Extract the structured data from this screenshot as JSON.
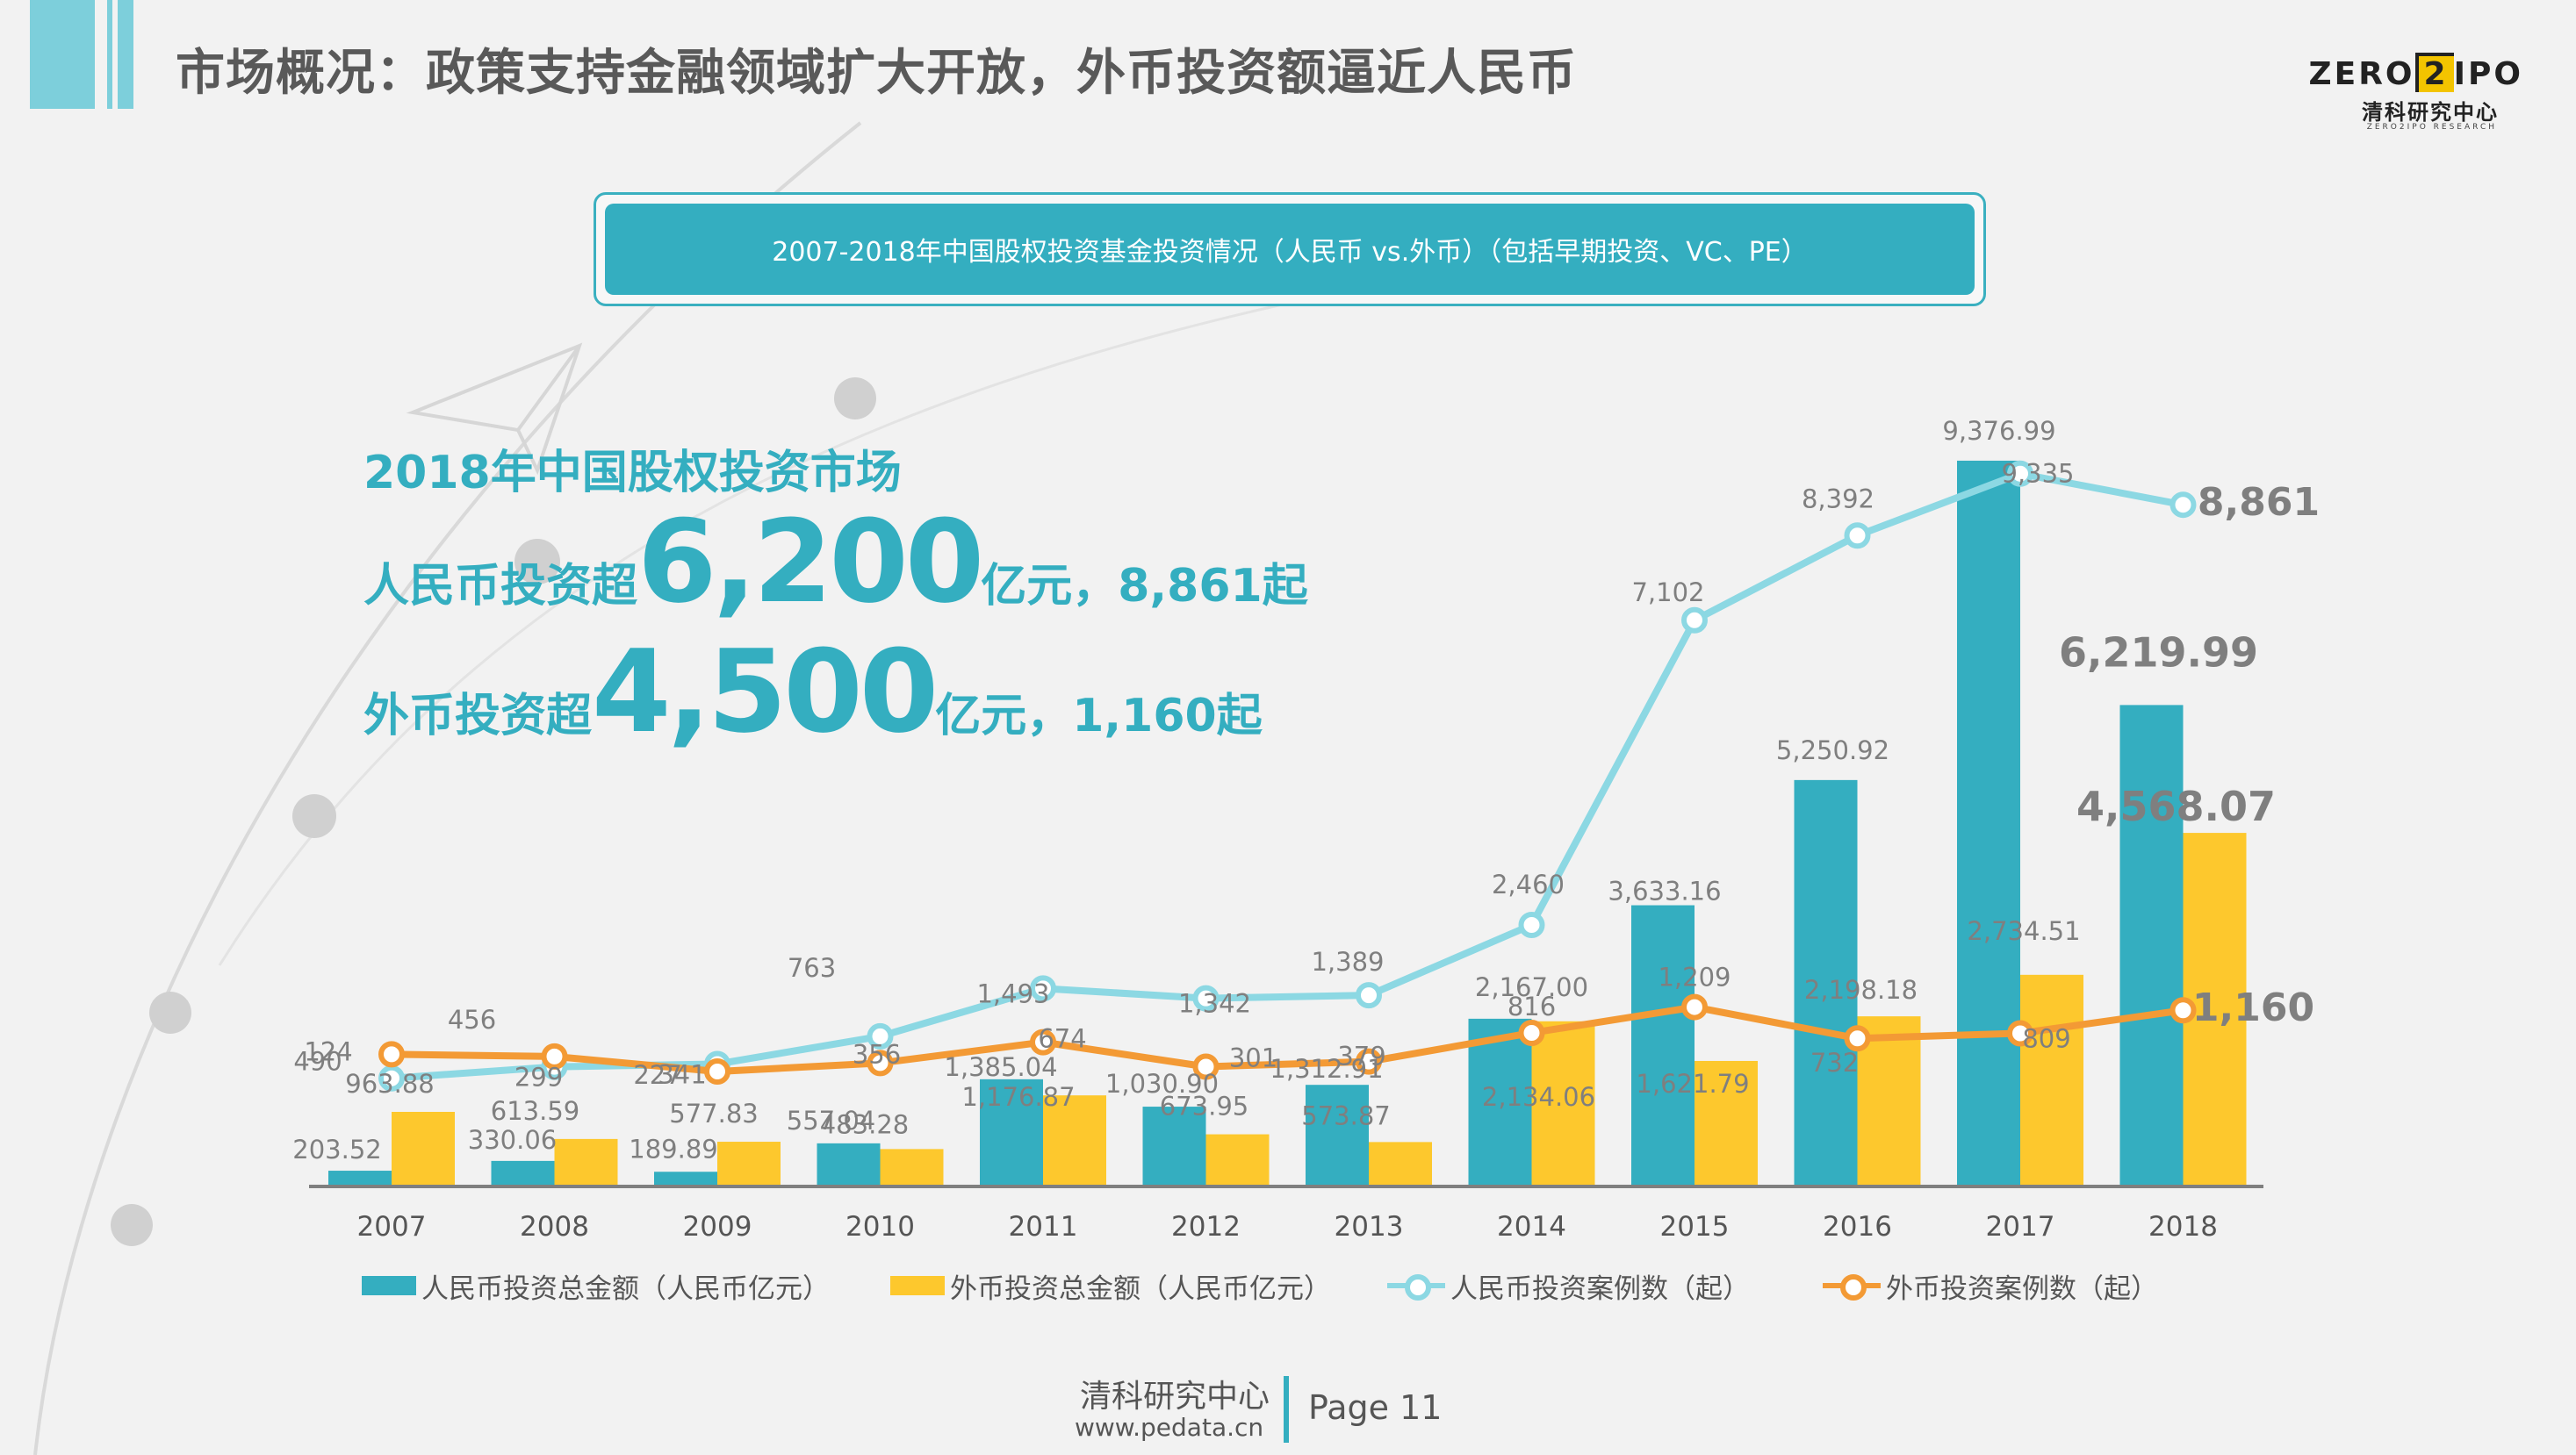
{
  "header": {
    "title": "市场概况：政策支持金融领域扩大开放，外币投资额逼近人民币"
  },
  "logo": {
    "text_left": "ZERO",
    "text_box": "2",
    "text_right": "IPO",
    "cn": "清科研究中心",
    "en": "ZERO2IPO RESEARCH"
  },
  "banner": {
    "text": "2007-2018年中国股权投资基金投资情况（人民币 vs.外币）（包括早期投资、VC、PE）"
  },
  "headline": {
    "line1": "2018年中国股权投资市场",
    "rmb_prefix": "人民币投资超",
    "rmb_big": "6,200",
    "rmb_suffix": "亿元，8,861起",
    "fx_prefix": "外币投资超",
    "fx_big": "4,500",
    "fx_suffix": "亿元，1,160起"
  },
  "colors": {
    "rmb_bar": "#34aec0",
    "fx_bar": "#fdc82d",
    "rmb_line": "#8cd8e3",
    "fx_line": "#f39a35",
    "accent": "#34aec0"
  },
  "chart_data": {
    "type": "bar+line",
    "categories": [
      "2007",
      "2008",
      "2009",
      "2010",
      "2011",
      "2012",
      "2013",
      "2014",
      "2015",
      "2016",
      "2017",
      "2018"
    ],
    "series": [
      {
        "name": "人民币投资总金额（人民币亿元）",
        "kind": "bar",
        "values": [
          203.52,
          330.06,
          189.89,
          557.04,
          1385.04,
          1030.9,
          1312.91,
          null,
          3633.16,
          5250.92,
          9376.99,
          6219.99
        ],
        "labels": [
          "203.52",
          "330.06",
          "189.89",
          "557.04",
          "1,385.04",
          "1,030.90",
          "1,312.91",
          "2,167.00",
          "3,633.16",
          "5,250.92",
          "9,376.99",
          "6,219.99"
        ]
      },
      {
        "name": "外币投资总金额（人民币亿元）",
        "kind": "bar",
        "values": [
          963.88,
          613.59,
          577.83,
          483.28,
          1176.87,
          673.95,
          573.87,
          2134.06,
          1621.79,
          2198.18,
          2734.51,
          4568.07
        ],
        "labels": [
          "963.88",
          "613.59",
          "577.83",
          "483.28",
          "1,176.87",
          "673.95",
          "573.87",
          "2,134.06",
          "1,621.79",
          "2,198.18",
          "2,734.51",
          "4,568.07"
        ]
      },
      {
        "name": "人民币投资案例数（起）",
        "kind": "line",
        "values": [
          124,
          299,
          341,
          763,
          1493,
          1342,
          1389,
          2460,
          7102,
          8392,
          9335,
          8861
        ],
        "labels": [
          "124",
          "299",
          "341",
          "763",
          "1,493",
          "1,342",
          "1,389",
          "2,460",
          "7,102",
          "8,392",
          "9,335",
          "8,861"
        ]
      },
      {
        "name": "外币投资案例数（起）",
        "kind": "line",
        "values": [
          490,
          456,
          227,
          356,
          674,
          301,
          379,
          816,
          1209,
          732,
          809,
          1160
        ],
        "labels": [
          "490",
          "456",
          "227",
          "356",
          "674",
          "301",
          "379",
          "816",
          "1,209",
          "732",
          "809",
          "1,160"
        ]
      }
    ],
    "bar_axis_range": [
      0,
      10000
    ],
    "line_axis_range": [
      0,
      10000
    ],
    "legend": "bottom"
  },
  "legend": {
    "rmb_amount": "人民币投资总金额（人民币亿元）",
    "fx_amount": "外币投资总金额（人民币亿元）",
    "rmb_count": "人民币投资案例数（起）",
    "fx_count": "外币投资案例数（起）"
  },
  "footer": {
    "org": "清科研究中心",
    "url": "www.pedata.cn",
    "page_label": "Page",
    "page_number": "11"
  }
}
